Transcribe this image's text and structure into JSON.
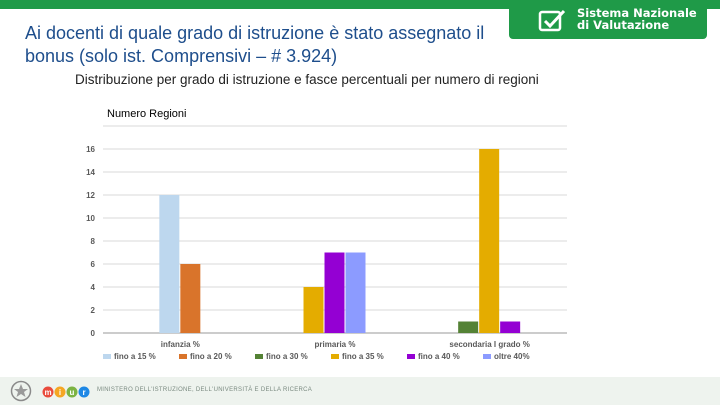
{
  "header": {
    "title": "Ai docenti di quale grado di istruzione è stato assegnato il bonus (solo ist. Comprensivi – # 3.924)",
    "subtitle": "Distribuzione per grado di istruzione e fasce percentuali per numero di regioni",
    "logo_line1": "Sistema Nazionale",
    "logo_line2": "di Valutazione",
    "brand_color": "#1f9a48"
  },
  "footer": {
    "text": "MINISTERO DELL'ISTRUZIONE, DELL'UNIVERSITÀ E DELLA RICERCA",
    "logo_letters": [
      "m",
      "i",
      "u",
      "r"
    ],
    "logo_colors": [
      "#e94b3c",
      "#f5a623",
      "#7cb342",
      "#1e88e5"
    ]
  },
  "chart_data": {
    "type": "bar",
    "ylabel": "Numero Regioni",
    "xlabel": "",
    "ylim": [
      0,
      18
    ],
    "yticks": [
      0,
      2,
      4,
      6,
      8,
      10,
      12,
      14,
      16,
      18
    ],
    "grid": true,
    "legend_position": "bottom",
    "categories": [
      "infanzia %",
      "primaria %",
      "secondaria I grado %"
    ],
    "series": [
      {
        "name": "fino a 15 %",
        "color": "#bdd7ee",
        "values": [
          12,
          0,
          0
        ]
      },
      {
        "name": "fino a 20 %",
        "color": "#d9742b",
        "values": [
          6,
          0,
          0
        ]
      },
      {
        "name": "fino a 30 %",
        "color": "#548235",
        "values": [
          0,
          0,
          1
        ]
      },
      {
        "name": "fino a 35 %",
        "color": "#e4ac00",
        "values": [
          0,
          4,
          16
        ]
      },
      {
        "name": "fino a 40 %",
        "color": "#9400d3",
        "values": [
          0,
          7,
          1
        ]
      },
      {
        "name": "oltre 40%",
        "color": "#8c9bff",
        "values": [
          0,
          7,
          0
        ]
      }
    ]
  }
}
